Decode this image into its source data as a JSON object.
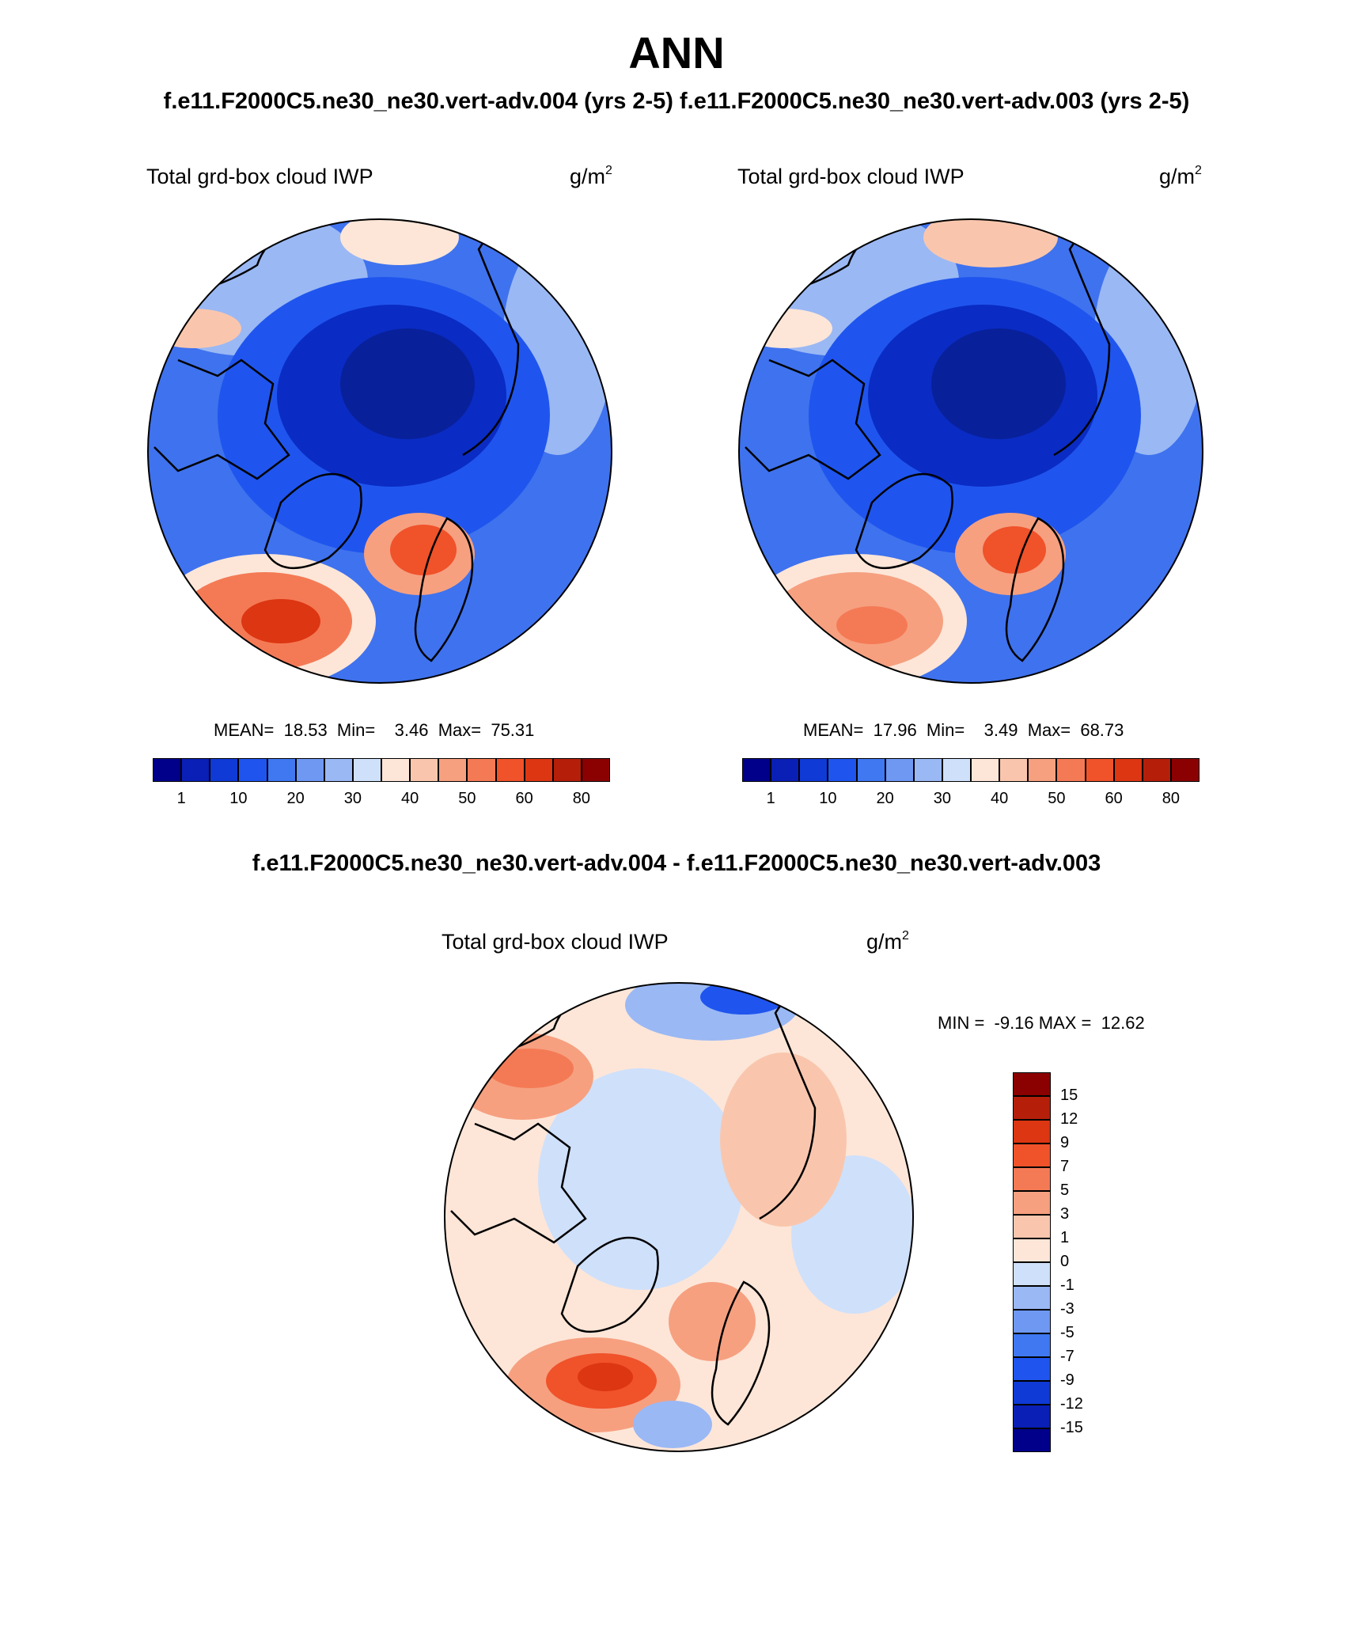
{
  "title": "ANN",
  "subtitle": "f.e11.F2000C5.ne30_ne30.vert-adv.004 (yrs 2-5)  f.e11.F2000C5.ne30_ne30.vert-adv.003 (yrs 2-5)",
  "diff_title": "f.e11.F2000C5.ne30_ne30.vert-adv.004 - f.e11.F2000C5.ne30_ne30.vert-adv.003",
  "panels": [
    {
      "variable": "Total grd-box cloud IWP",
      "units_base": "g/m",
      "units_exp": "2",
      "stats": "MEAN=  18.53  Min=    3.46  Max=  75.31"
    },
    {
      "variable": "Total grd-box cloud IWP",
      "units_base": "g/m",
      "units_exp": "2",
      "stats": "MEAN=  17.96  Min=    3.49  Max=  68.73"
    },
    {
      "variable": "Total grd-box cloud IWP",
      "units_base": "g/m",
      "units_exp": "2",
      "stats": "MIN =  -9.16 MAX =  12.62"
    }
  ],
  "colorbar_abs": {
    "tick_labels": [
      "1",
      "10",
      "20",
      "30",
      "40",
      "50",
      "60",
      "80"
    ],
    "colors": [
      "#00008b",
      "#0a1fb5",
      "#0f3ad6",
      "#1f55ee",
      "#3f78f0",
      "#6e98f2",
      "#9ab8f4",
      "#cfe0fa",
      "#fde6d8",
      "#f9c6ad",
      "#f6a080",
      "#f47a55",
      "#f0522a",
      "#dc3612",
      "#b51f0a",
      "#8b0000"
    ]
  },
  "colorbar_diff": {
    "tick_labels": [
      "15",
      "12",
      "9",
      "7",
      "5",
      "3",
      "1",
      "0",
      "-1",
      "-3",
      "-5",
      "-7",
      "-9",
      "-12",
      "-15"
    ],
    "colors": [
      "#8b0000",
      "#b51f0a",
      "#dc3612",
      "#f0522a",
      "#f47a55",
      "#f6a080",
      "#f9c6ad",
      "#fde6d8",
      "#cfe0fa",
      "#9ab8f4",
      "#6e98f2",
      "#3f78f0",
      "#1f55ee",
      "#0f3ad6",
      "#0a1fb5",
      "#00008b"
    ]
  },
  "map_palette": {
    "deep": "#0a2cc4",
    "mid": "#1f55ee",
    "base": "#3f72ee",
    "light": "#9ab8f4",
    "pale": "#cfe0fa",
    "warm_pale": "#fde6d8",
    "warm": "#f6a080",
    "hot": "#f0522a",
    "hotter": "#dc3612"
  }
}
